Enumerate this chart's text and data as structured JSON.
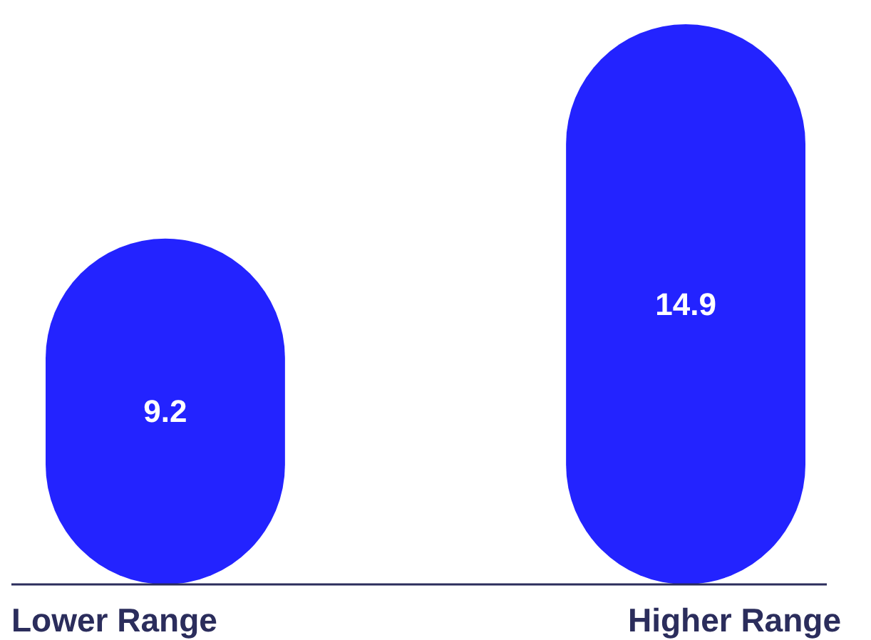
{
  "chart_data": {
    "type": "bar",
    "categories": [
      "Lower Range",
      "Higher Range"
    ],
    "values": [
      9.2,
      14.9
    ],
    "color": "#2323ff",
    "data_labels": true
  }
}
